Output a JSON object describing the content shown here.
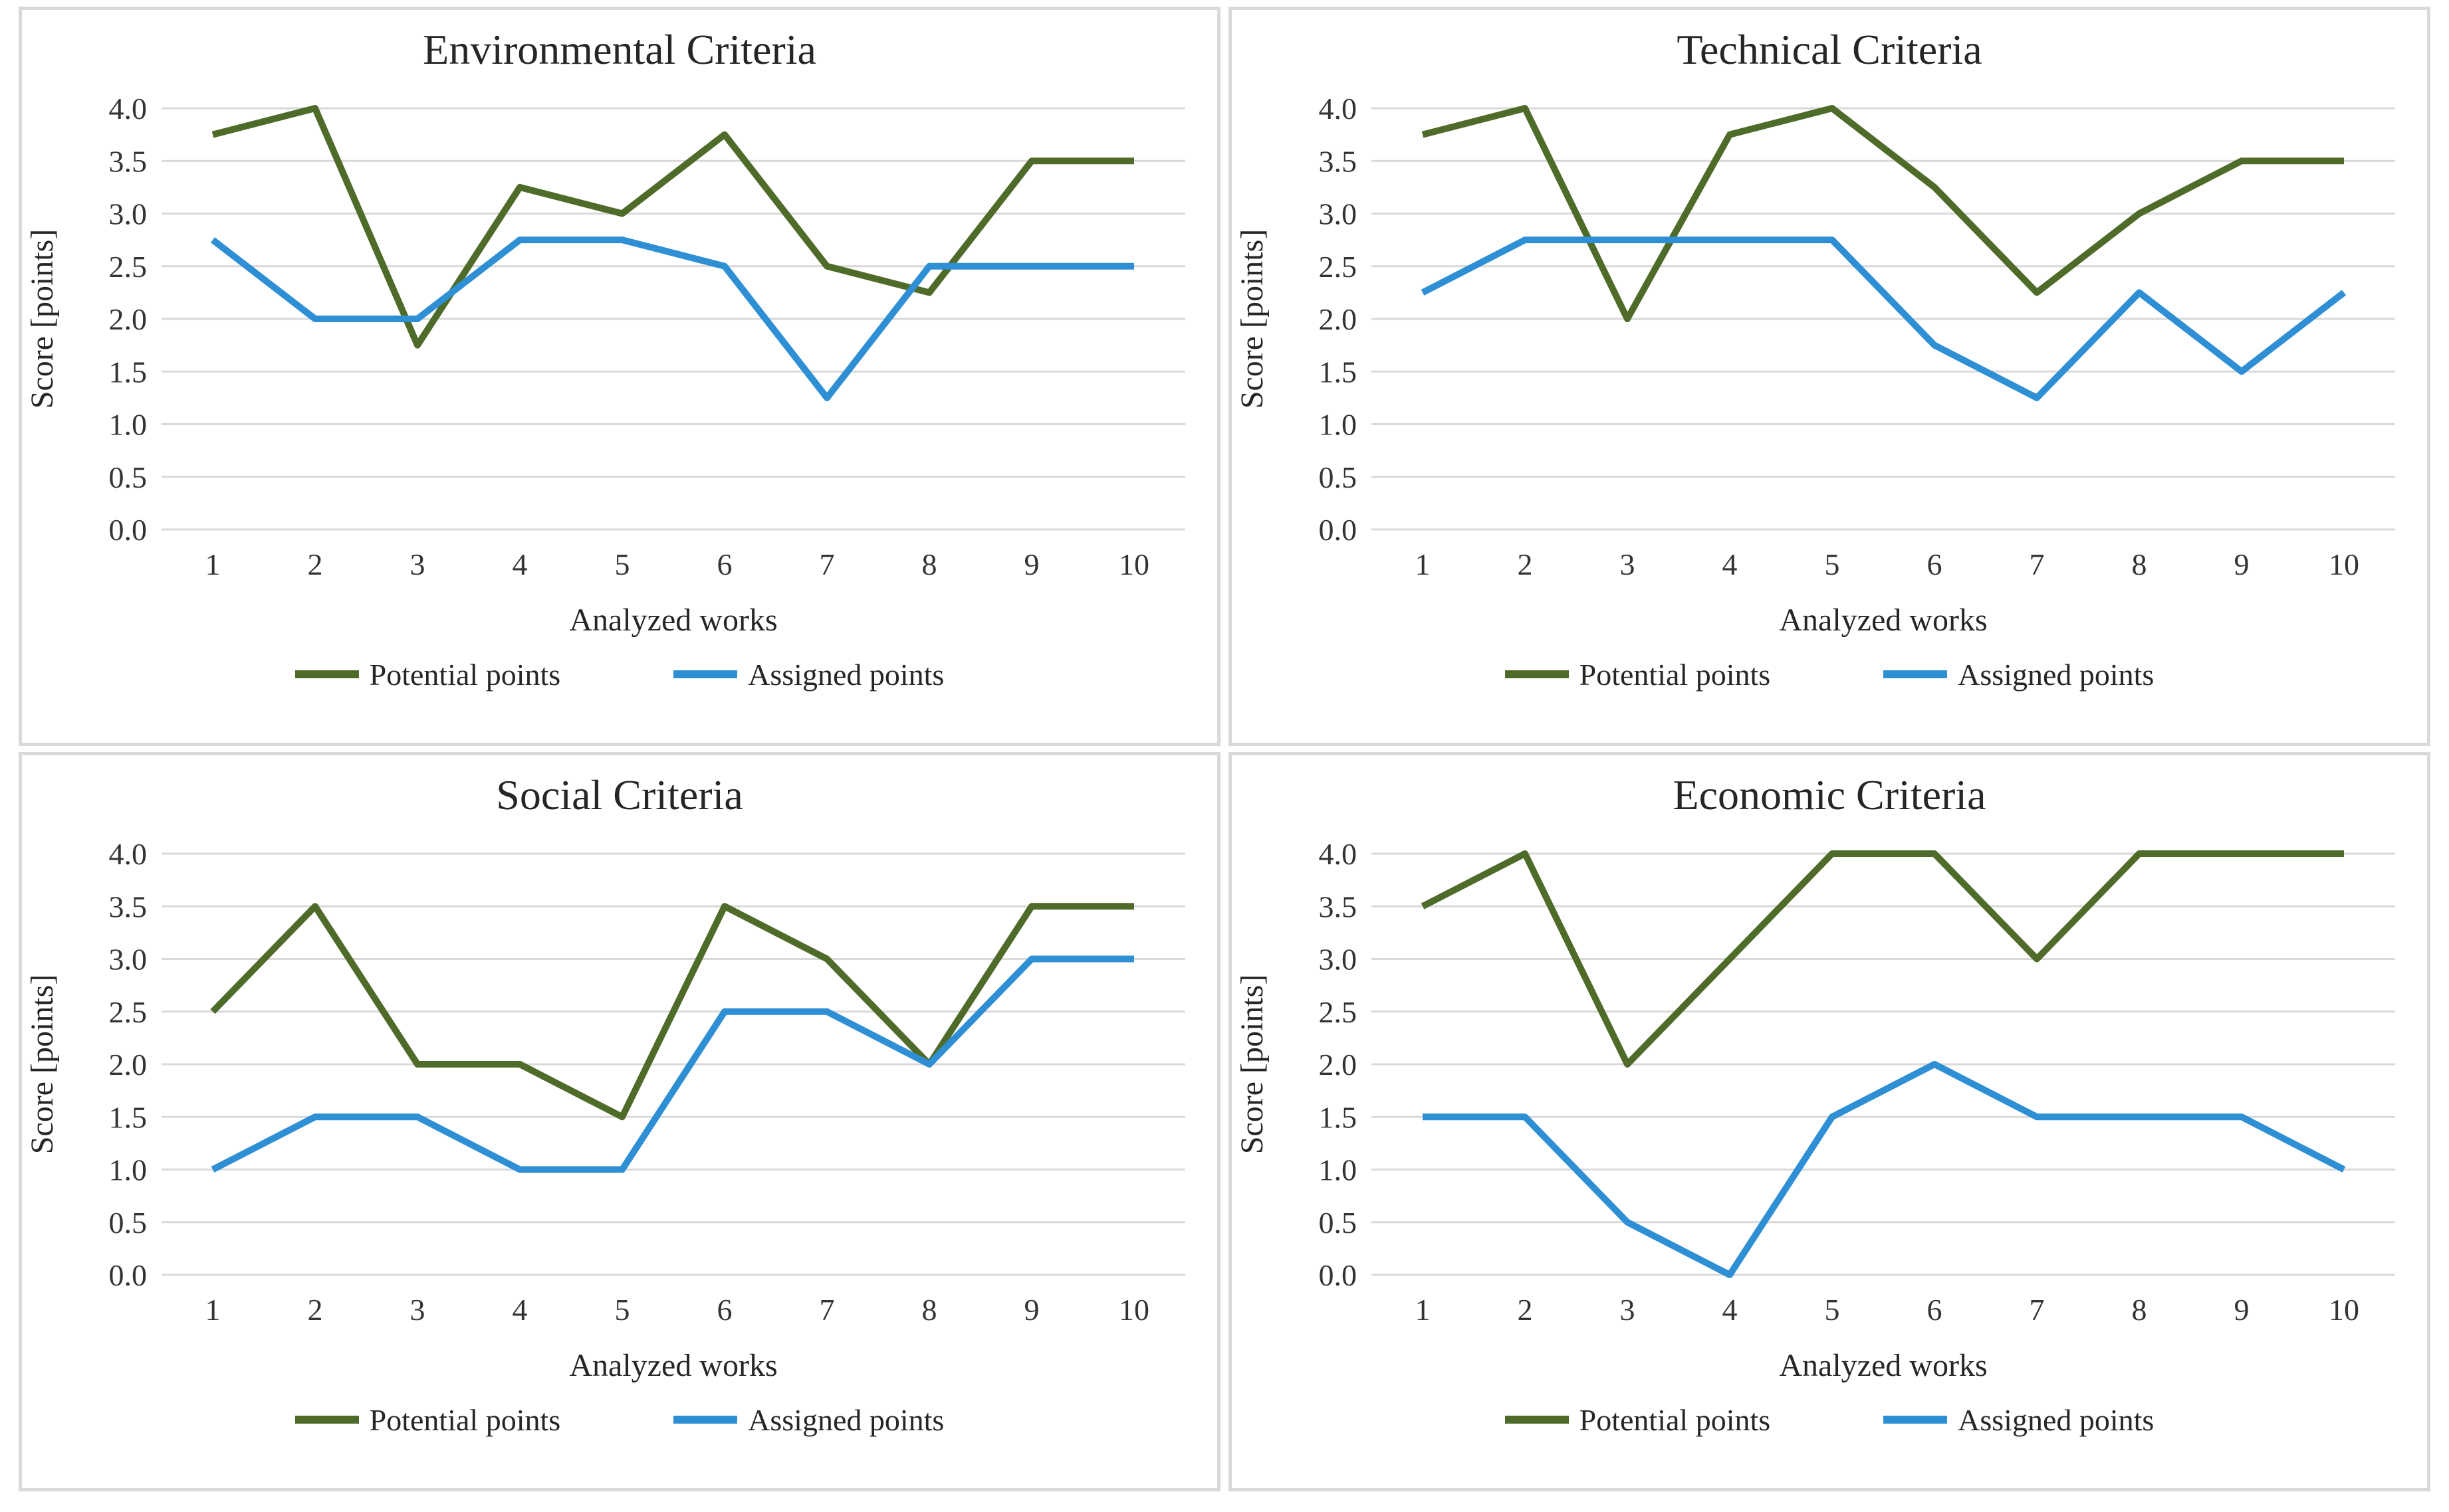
{
  "page": {
    "background": "#ffffff",
    "panel_border_color": "#d9d9d9",
    "grid_color": "#d9d9d9",
    "tick_text_color": "#333333",
    "title_text_color": "#262626"
  },
  "chart_data": [
    {
      "type": "line",
      "title": "Environmental Criteria",
      "xlabel": "Analyzed works",
      "ylabel": "Score [points]",
      "categories": [
        "1",
        "2",
        "3",
        "4",
        "5",
        "6",
        "7",
        "8",
        "9",
        "10"
      ],
      "ylim": [
        0.0,
        4.0
      ],
      "ytick_step": 0.5,
      "ytick_labels": [
        "4.0",
        "3.5",
        "3.0",
        "2.5",
        "2.0",
        "1.5",
        "1.0",
        "0.5",
        "0.0"
      ],
      "grid": "horizontal",
      "legend_position": "bottom",
      "series": [
        {
          "name": "Potential points",
          "color": "#4e6b29",
          "values": [
            3.75,
            4.0,
            1.75,
            3.25,
            3.0,
            3.75,
            2.5,
            2.25,
            3.5,
            3.5
          ]
        },
        {
          "name": "Assigned points",
          "color": "#2e8fd5",
          "values": [
            2.75,
            2.0,
            2.0,
            2.75,
            2.75,
            2.5,
            1.25,
            2.5,
            2.5,
            2.5
          ]
        }
      ]
    },
    {
      "type": "line",
      "title": "Technical Criteria",
      "xlabel": "Analyzed works",
      "ylabel": "Score [points]",
      "categories": [
        "1",
        "2",
        "3",
        "4",
        "5",
        "6",
        "7",
        "8",
        "9",
        "10"
      ],
      "ylim": [
        0.0,
        4.0
      ],
      "ytick_step": 0.5,
      "ytick_labels": [
        "4.0",
        "3.5",
        "3.0",
        "2.5",
        "2.0",
        "1.5",
        "1.0",
        "0.5",
        "0.0"
      ],
      "grid": "horizontal",
      "legend_position": "bottom",
      "series": [
        {
          "name": "Potential points",
          "color": "#4e6b29",
          "values": [
            3.75,
            4.0,
            2.0,
            3.75,
            4.0,
            3.25,
            2.25,
            3.0,
            3.5,
            3.5
          ]
        },
        {
          "name": "Assigned points",
          "color": "#2e8fd5",
          "values": [
            2.25,
            2.75,
            2.75,
            2.75,
            2.75,
            1.75,
            1.25,
            2.25,
            1.5,
            2.25
          ]
        }
      ]
    },
    {
      "type": "line",
      "title": "Social Criteria",
      "xlabel": "Analyzed works",
      "ylabel": "Score [points]",
      "categories": [
        "1",
        "2",
        "3",
        "4",
        "5",
        "6",
        "7",
        "8",
        "9",
        "10"
      ],
      "ylim": [
        0.0,
        4.0
      ],
      "ytick_step": 0.5,
      "ytick_labels": [
        "4.0",
        "3.5",
        "3.0",
        "2.5",
        "2.0",
        "1.5",
        "1.0",
        "0.5",
        "0.0"
      ],
      "grid": "horizontal",
      "legend_position": "bottom",
      "series": [
        {
          "name": "Potential points",
          "color": "#4e6b29",
          "values": [
            2.5,
            3.5,
            2.0,
            2.0,
            1.5,
            3.5,
            3.0,
            2.0,
            3.5,
            3.5
          ]
        },
        {
          "name": "Assigned points",
          "color": "#2e8fd5",
          "values": [
            1.0,
            1.5,
            1.5,
            1.0,
            1.0,
            2.5,
            2.5,
            2.0,
            3.0,
            3.0
          ]
        }
      ]
    },
    {
      "type": "line",
      "title": "Economic Criteria",
      "xlabel": "Analyzed works",
      "ylabel": "Score [points]",
      "categories": [
        "1",
        "2",
        "3",
        "4",
        "5",
        "6",
        "7",
        "8",
        "9",
        "10"
      ],
      "ylim": [
        0.0,
        4.0
      ],
      "ytick_step": 0.5,
      "ytick_labels": [
        "4.0",
        "3.5",
        "3.0",
        "2.5",
        "2.0",
        "1.5",
        "1.0",
        "0.5",
        "0.0"
      ],
      "grid": "horizontal",
      "legend_position": "bottom",
      "series": [
        {
          "name": "Potential points",
          "color": "#4e6b29",
          "values": [
            3.5,
            4.0,
            2.0,
            3.0,
            4.0,
            4.0,
            3.0,
            4.0,
            4.0,
            4.0
          ]
        },
        {
          "name": "Assigned points",
          "color": "#2e8fd5",
          "values": [
            1.5,
            1.5,
            0.5,
            0.0,
            1.5,
            2.0,
            1.5,
            1.5,
            1.5,
            1.0
          ]
        }
      ]
    }
  ]
}
